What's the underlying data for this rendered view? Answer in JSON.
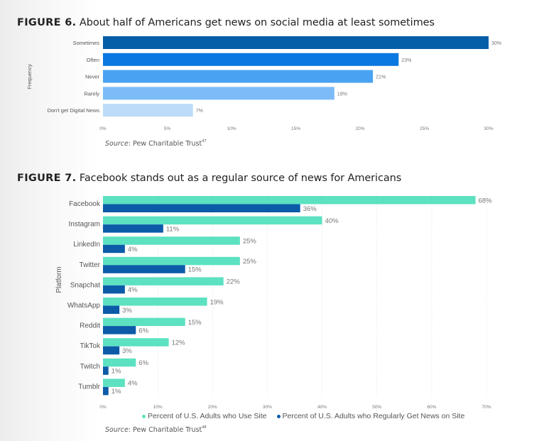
{
  "figure6": {
    "title_num": "FIGURE 6.",
    "title_text": "About half of Americans get news on social media at least sometimes",
    "source_prefix": "Source",
    "source_text": ": Pew Charitable Trust",
    "source_sup": "47"
  },
  "figure7": {
    "title_num": "FIGURE 7.",
    "title_text": "Facebook stands out as a regular source of news for Americans",
    "source_prefix": "Source",
    "source_text": ": Pew Charitable Trust",
    "source_sup": "48",
    "legend": [
      {
        "label": "Percent of U.S. Adults who Use Site",
        "color": "#5ce1c1"
      },
      {
        "label": "Percent of U.S. Adults who Regularly Get News on Site",
        "color": "#0b5ba8"
      }
    ]
  },
  "chart_data": [
    {
      "type": "bar",
      "orientation": "horizontal",
      "title": "FIGURE 6. About half of Americans get news on social media at least sometimes",
      "xlabel": "",
      "ylabel": "Frequency",
      "categories": [
        "Sometimes",
        "Often",
        "Never",
        "Rarely",
        "Don't get Digital News"
      ],
      "values": [
        30,
        23,
        21,
        18,
        7
      ],
      "value_labels": [
        "30%",
        "23%",
        "21%",
        "18%",
        "7%"
      ],
      "colors": [
        "#045ea8",
        "#0a78e0",
        "#4aa3f2",
        "#7cbbf7",
        "#bcdcfa"
      ],
      "xlim": [
        0,
        30
      ],
      "xticks": [
        0,
        5,
        10,
        15,
        20,
        25,
        30
      ],
      "xtick_labels": [
        "0%",
        "5%",
        "10%",
        "15%",
        "20%",
        "25%",
        "30%"
      ],
      "grid": false,
      "source": "Source: Pew Charitable Trust 47"
    },
    {
      "type": "bar",
      "orientation": "horizontal",
      "title": "FIGURE 7. Facebook stands out as a regular source of news for Americans",
      "xlabel": "",
      "ylabel": "Platform",
      "categories": [
        "Facebook",
        "Instagram",
        "LinkedIn",
        "Twitter",
        "Snapchat",
        "WhatsApp",
        "Reddit",
        "TikTok",
        "Twitch",
        "Tumblr"
      ],
      "series": [
        {
          "name": "Percent of U.S. Adults who Use Site",
          "color": "#5ce1c1",
          "values": [
            68,
            40,
            25,
            25,
            22,
            19,
            15,
            12,
            6,
            4
          ]
        },
        {
          "name": "Percent of U.S. Adults who Regularly Get News on Site",
          "color": "#0b5ba8",
          "values": [
            36,
            11,
            4,
            15,
            4,
            3,
            6,
            3,
            1,
            1
          ]
        }
      ],
      "xlim": [
        0,
        70
      ],
      "xticks": [
        0,
        10,
        20,
        30,
        40,
        50,
        60,
        70
      ],
      "xtick_labels": [
        "0%",
        "10%",
        "20%",
        "30%",
        "40%",
        "50%",
        "60%",
        "70%"
      ],
      "grid": true,
      "legend_position": "bottom",
      "source": "Source: Pew Charitable Trust 48"
    }
  ]
}
